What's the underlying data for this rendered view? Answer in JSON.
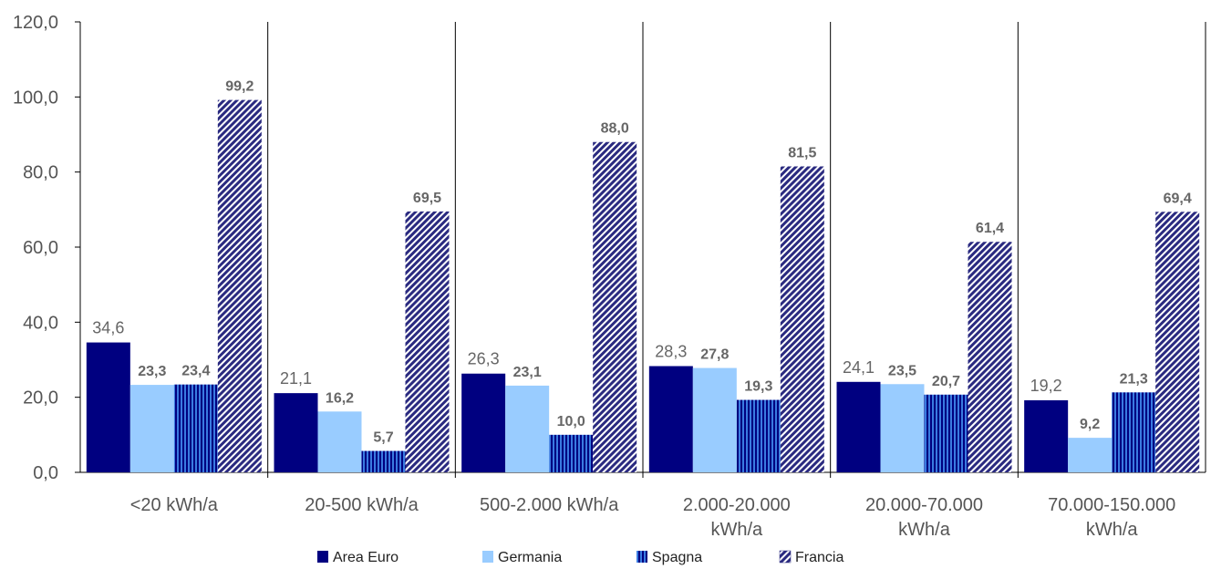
{
  "chart_data": {
    "type": "bar",
    "categories": [
      [
        "<20 kWh/a"
      ],
      [
        "20-500 kWh/a"
      ],
      [
        "500-2.000 kWh/a"
      ],
      [
        "2.000-20.000",
        "kWh/a"
      ],
      [
        "20.000-70.000",
        "kWh/a"
      ],
      [
        "70.000-150.000",
        "kWh/a"
      ]
    ],
    "series": [
      {
        "name": "Area Euro",
        "values": [
          34.6,
          21.1,
          26.3,
          28.3,
          24.1,
          19.2
        ],
        "labels": [
          "34,6",
          "21,1",
          "26,3",
          "28,3",
          "24,1",
          "19,2"
        ],
        "color": "#000080",
        "pattern": "solid",
        "label_style": "plain"
      },
      {
        "name": "Germania",
        "values": [
          23.3,
          16.2,
          23.1,
          27.8,
          23.5,
          9.2
        ],
        "labels": [
          "23,3",
          "16,2",
          "23,1",
          "27,8",
          "23,5",
          "9,2"
        ],
        "color": "#99ccff",
        "pattern": "solid",
        "label_style": "bold"
      },
      {
        "name": "Spagna",
        "values": [
          23.4,
          5.7,
          10.0,
          19.3,
          20.7,
          21.3
        ],
        "labels": [
          "23,4",
          "5,7",
          "10,0",
          "19,3",
          "20,7",
          "21,3"
        ],
        "color": "#0033aa",
        "pattern": "vertical-stripes",
        "label_style": "bold"
      },
      {
        "name": "Francia",
        "values": [
          99.2,
          69.5,
          88.0,
          81.5,
          61.4,
          69.4
        ],
        "labels": [
          "99,2",
          "69,5",
          "88,0",
          "81,5",
          "61,4",
          "69,4"
        ],
        "color": "#333388",
        "pattern": "diagonal-hatch",
        "label_style": "bold"
      }
    ],
    "y_ticks": [
      "0,0",
      "20,0",
      "40,0",
      "60,0",
      "80,0",
      "100,0",
      "120,0"
    ],
    "ylim": [
      0,
      120
    ],
    "ystep": 20,
    "grid": false,
    "category_separators": true,
    "legend": "bottom",
    "title": "",
    "xlabel": "",
    "ylabel": ""
  }
}
